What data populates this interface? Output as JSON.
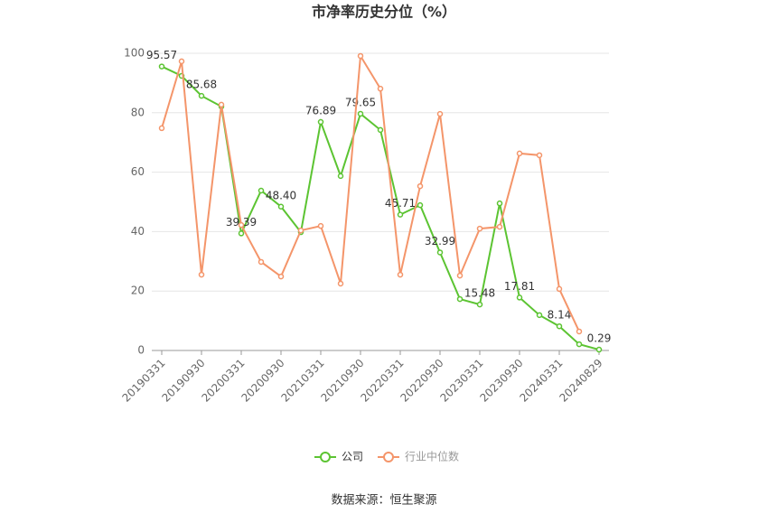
{
  "chart_data": {
    "type": "line",
    "title": "市净率历史分位（%）",
    "categories": [
      "20190331",
      null,
      "20190930",
      null,
      "20200331",
      null,
      "20200930",
      null,
      "20210331",
      null,
      "20210930",
      null,
      "20220331",
      null,
      "20220930",
      null,
      "20230331",
      null,
      "20230930",
      null,
      "20240331",
      null,
      "20240829"
    ],
    "series": [
      {
        "name": "公司",
        "color": "#5cc432",
        "values": [
          95.57,
          92.4,
          85.68,
          82.1,
          39.39,
          53.8,
          48.4,
          39.8,
          76.89,
          58.7,
          79.65,
          74.2,
          45.71,
          48.9,
          32.99,
          17.3,
          15.48,
          49.5,
          17.81,
          11.9,
          8.14,
          2.1,
          0.29
        ],
        "value_labels": [
          "95.57",
          null,
          "85.68",
          null,
          "39.39",
          null,
          "48.40",
          null,
          "76.89",
          null,
          "79.65",
          null,
          "45.71",
          null,
          "32.99",
          null,
          "15.48",
          null,
          "17.81",
          null,
          "8.14",
          null,
          "0.29"
        ]
      },
      {
        "name": "行业中位数",
        "color": "#f4956a",
        "values": [
          74.8,
          97.3,
          25.5,
          82.7,
          42.2,
          29.8,
          24.9,
          40.4,
          41.9,
          22.5,
          99.1,
          88.1,
          25.5,
          55.3,
          79.6,
          25.2,
          41,
          41.6,
          66.3,
          65.7,
          20.7,
          6.4,
          null
        ]
      }
    ],
    "ylim": [
      0,
      100
    ],
    "yticks": [
      0,
      20,
      40,
      60,
      80,
      100
    ],
    "grid": true,
    "source": "数据来源：恒生聚源"
  }
}
